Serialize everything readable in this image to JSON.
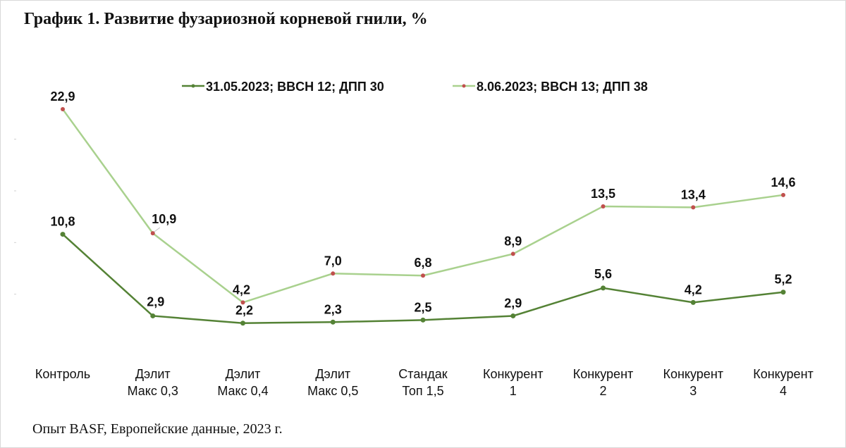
{
  "title": "График 1. Развитие фузариозной корневой гнили, %",
  "source": "Опыт BASF, Европейские данные, 2023 г.",
  "colors": {
    "series1": "#548235",
    "series2": "#a9d18e",
    "marker2": "#c0504d"
  },
  "chart_data": {
    "type": "line",
    "title": "График 1. Развитие фузариозной корневой гнили, %",
    "categories": [
      [
        "Контроль"
      ],
      [
        "Дэлит",
        "Макс 0,3"
      ],
      [
        "Дэлит",
        "Макс 0,4"
      ],
      [
        "Дэлит",
        "Макс 0,5"
      ],
      [
        "Стандак",
        "Топ 1,5"
      ],
      [
        "Конкурент",
        "1"
      ],
      [
        "Конкурент",
        "2"
      ],
      [
        "Конкурент",
        "3"
      ],
      [
        "Конкурент",
        "4"
      ]
    ],
    "series": [
      {
        "name": "31.05.2023; BBCH 12; ДПП 30",
        "values": [
          10.8,
          2.9,
          2.2,
          2.3,
          2.5,
          2.9,
          5.6,
          4.2,
          5.2
        ],
        "labels": [
          "10,8",
          "2,9",
          "2,2",
          "2,3",
          "2,5",
          "2,9",
          "5,6",
          "4,2",
          "5,2"
        ]
      },
      {
        "name": "8.06.2023; BBCH 13; ДПП 38",
        "values": [
          22.9,
          10.9,
          4.2,
          7.0,
          6.8,
          8.9,
          13.5,
          13.4,
          14.6
        ],
        "labels": [
          "22,9",
          "10,9",
          "4,2",
          "7,0",
          "6,8",
          "8,9",
          "13,5",
          "13,4",
          "14,6"
        ]
      }
    ],
    "xlabel": "",
    "ylabel": "",
    "ylim": [
      0,
      25
    ],
    "grid": false,
    "legend": "top-center"
  }
}
